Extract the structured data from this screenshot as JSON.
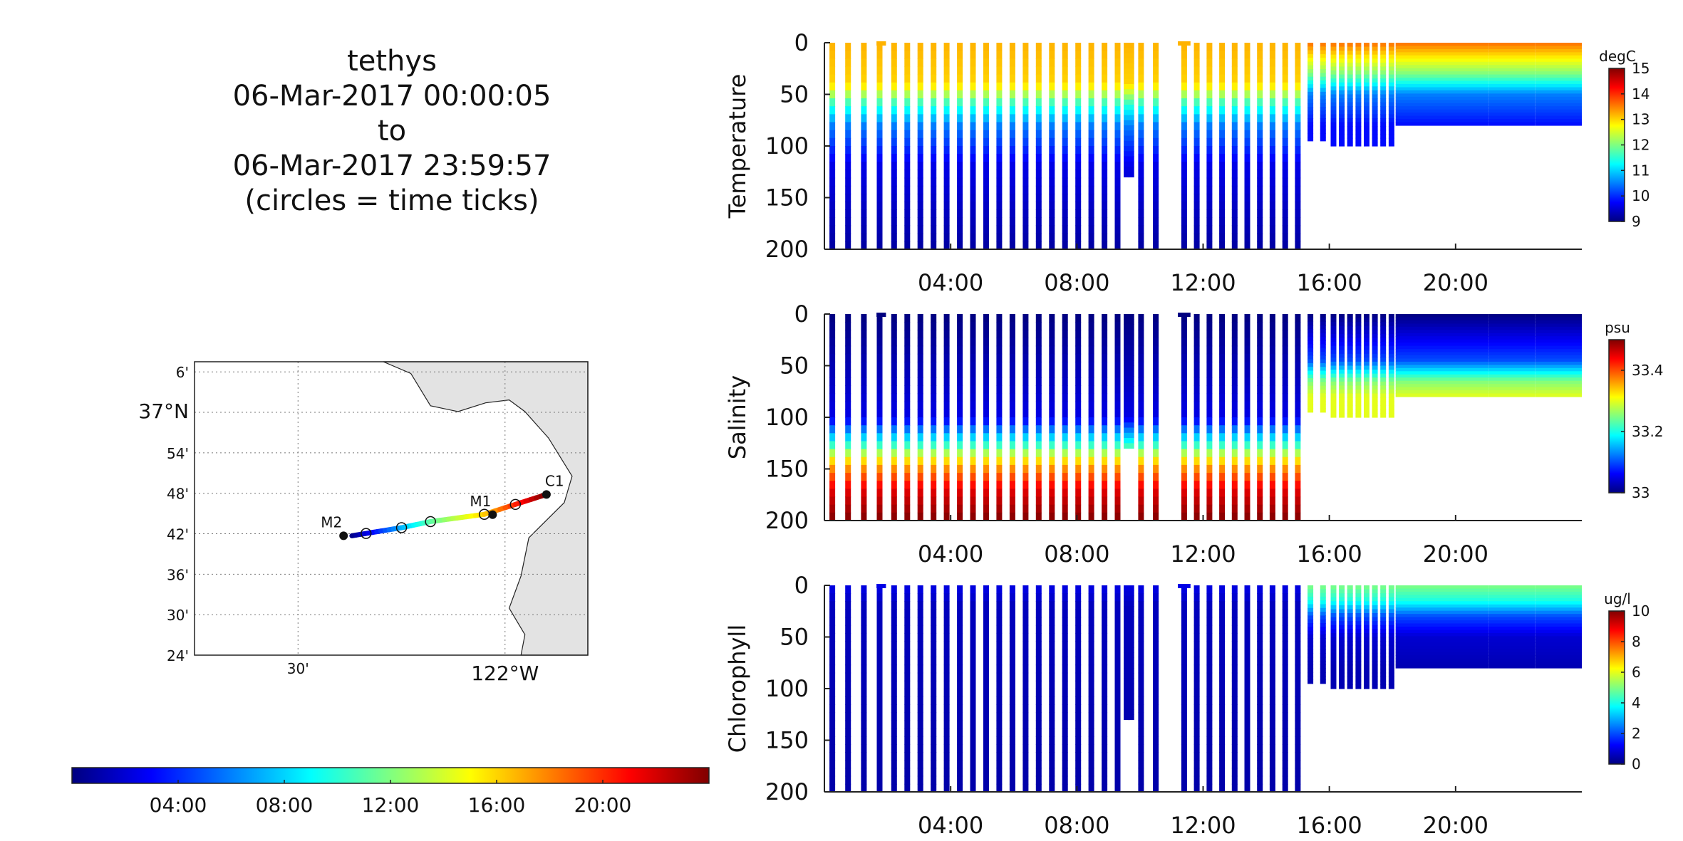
{
  "header": {
    "vehicle": "tethys",
    "start": "06-Mar-2017 00:00:05",
    "to": "to",
    "end": "06-Mar-2017 23:59:57",
    "note": "(circles = time ticks)"
  },
  "chart_data": [
    {
      "type": "scatter",
      "name": "Temperature",
      "ylabel": "Temperature",
      "units_label": "degC",
      "y_ticks": [
        "0",
        "50",
        "100",
        "150",
        "200"
      ],
      "ylim": [
        200,
        0
      ],
      "xlim": [
        "00:00",
        "24:00"
      ],
      "x_ticks": [
        "04:00",
        "08:00",
        "12:00",
        "16:00",
        "20:00"
      ],
      "colorbar": {
        "min": 9,
        "max": 15,
        "ticks": [
          "9",
          "10",
          "11",
          "12",
          "13",
          "14",
          "15"
        ]
      },
      "profile": [
        {
          "depth": 0,
          "value": 13.2
        },
        {
          "depth": 40,
          "value": 13.0
        },
        {
          "depth": 60,
          "value": 11.5
        },
        {
          "depth": 80,
          "value": 10.5
        },
        {
          "depth": 120,
          "value": 9.6
        },
        {
          "depth": 200,
          "value": 9.2
        }
      ],
      "profile_late": [
        {
          "depth": 0,
          "value": 13.6
        },
        {
          "depth": 30,
          "value": 12.0
        },
        {
          "depth": 50,
          "value": 10.5
        },
        {
          "depth": 80,
          "value": 9.8
        }
      ]
    },
    {
      "type": "scatter",
      "name": "Salinity",
      "ylabel": "Salinity",
      "units_label": "psu",
      "y_ticks": [
        "0",
        "50",
        "100",
        "150",
        "200"
      ],
      "ylim": [
        200,
        0
      ],
      "xlim": [
        "00:00",
        "24:00"
      ],
      "x_ticks": [
        "04:00",
        "08:00",
        "12:00",
        "16:00",
        "20:00"
      ],
      "colorbar": {
        "min": 33.0,
        "max": 33.5,
        "ticks": [
          "33",
          "33.2",
          "33.4"
        ]
      },
      "profile": [
        {
          "depth": 0,
          "value": 33.0
        },
        {
          "depth": 100,
          "value": 33.05
        },
        {
          "depth": 125,
          "value": 33.2
        },
        {
          "depth": 145,
          "value": 33.35
        },
        {
          "depth": 170,
          "value": 33.45
        },
        {
          "depth": 200,
          "value": 33.5
        }
      ],
      "profile_late": [
        {
          "depth": 0,
          "value": 33.0
        },
        {
          "depth": 45,
          "value": 33.1
        },
        {
          "depth": 65,
          "value": 33.25
        },
        {
          "depth": 80,
          "value": 33.3
        }
      ]
    },
    {
      "type": "scatter",
      "name": "Chlorophyll",
      "ylabel": "Chlorophyll",
      "units_label": "ug/l",
      "y_ticks": [
        "0",
        "50",
        "100",
        "150",
        "200"
      ],
      "ylim": [
        200,
        0
      ],
      "xlim": [
        "00:00",
        "24:00"
      ],
      "x_ticks": [
        "04:00",
        "08:00",
        "12:00",
        "16:00",
        "20:00"
      ],
      "colorbar": {
        "min": 0,
        "max": 10,
        "ticks": [
          "0",
          "2",
          "4",
          "6",
          "8",
          "10"
        ]
      },
      "profile": [
        {
          "depth": 0,
          "value": 1.0
        },
        {
          "depth": 20,
          "value": 0.6
        },
        {
          "depth": 200,
          "value": 0.4
        }
      ],
      "profile_late": [
        {
          "depth": 0,
          "value": 5.0
        },
        {
          "depth": 15,
          "value": 4.0
        },
        {
          "depth": 30,
          "value": 2.0
        },
        {
          "depth": 50,
          "value": 0.8
        },
        {
          "depth": 80,
          "value": 0.5
        }
      ]
    },
    {
      "type": "map",
      "lat_ticks": [
        "6'",
        "37°N",
        "54'",
        "48'",
        "42'",
        "36'",
        "30'",
        "24'"
      ],
      "lon_ticks": [
        "30'",
        "122°W"
      ],
      "lon_range": [
        -122.75,
        -121.8
      ],
      "lat_range": [
        36.4,
        37.125
      ],
      "stations": [
        {
          "label": "M2",
          "lon": -122.39,
          "lat": 36.695
        },
        {
          "label": "M1",
          "lon": -122.03,
          "lat": 36.747
        },
        {
          "label": "C1",
          "lon": -121.9,
          "lat": 36.797
        }
      ],
      "track": [
        {
          "lon": -122.37,
          "lat": 36.695,
          "t": 0
        },
        {
          "lon": -122.25,
          "lat": 36.715,
          "t": 7
        },
        {
          "lon": -122.18,
          "lat": 36.73,
          "t": 11
        },
        {
          "lon": -122.05,
          "lat": 36.748,
          "t": 16
        },
        {
          "lon": -121.9,
          "lat": 36.797,
          "t": 24
        }
      ]
    },
    {
      "type": "colorbar",
      "name": "time",
      "ticks": [
        "04:00",
        "08:00",
        "12:00",
        "16:00",
        "20:00"
      ],
      "range_hours": [
        0,
        24
      ]
    }
  ]
}
